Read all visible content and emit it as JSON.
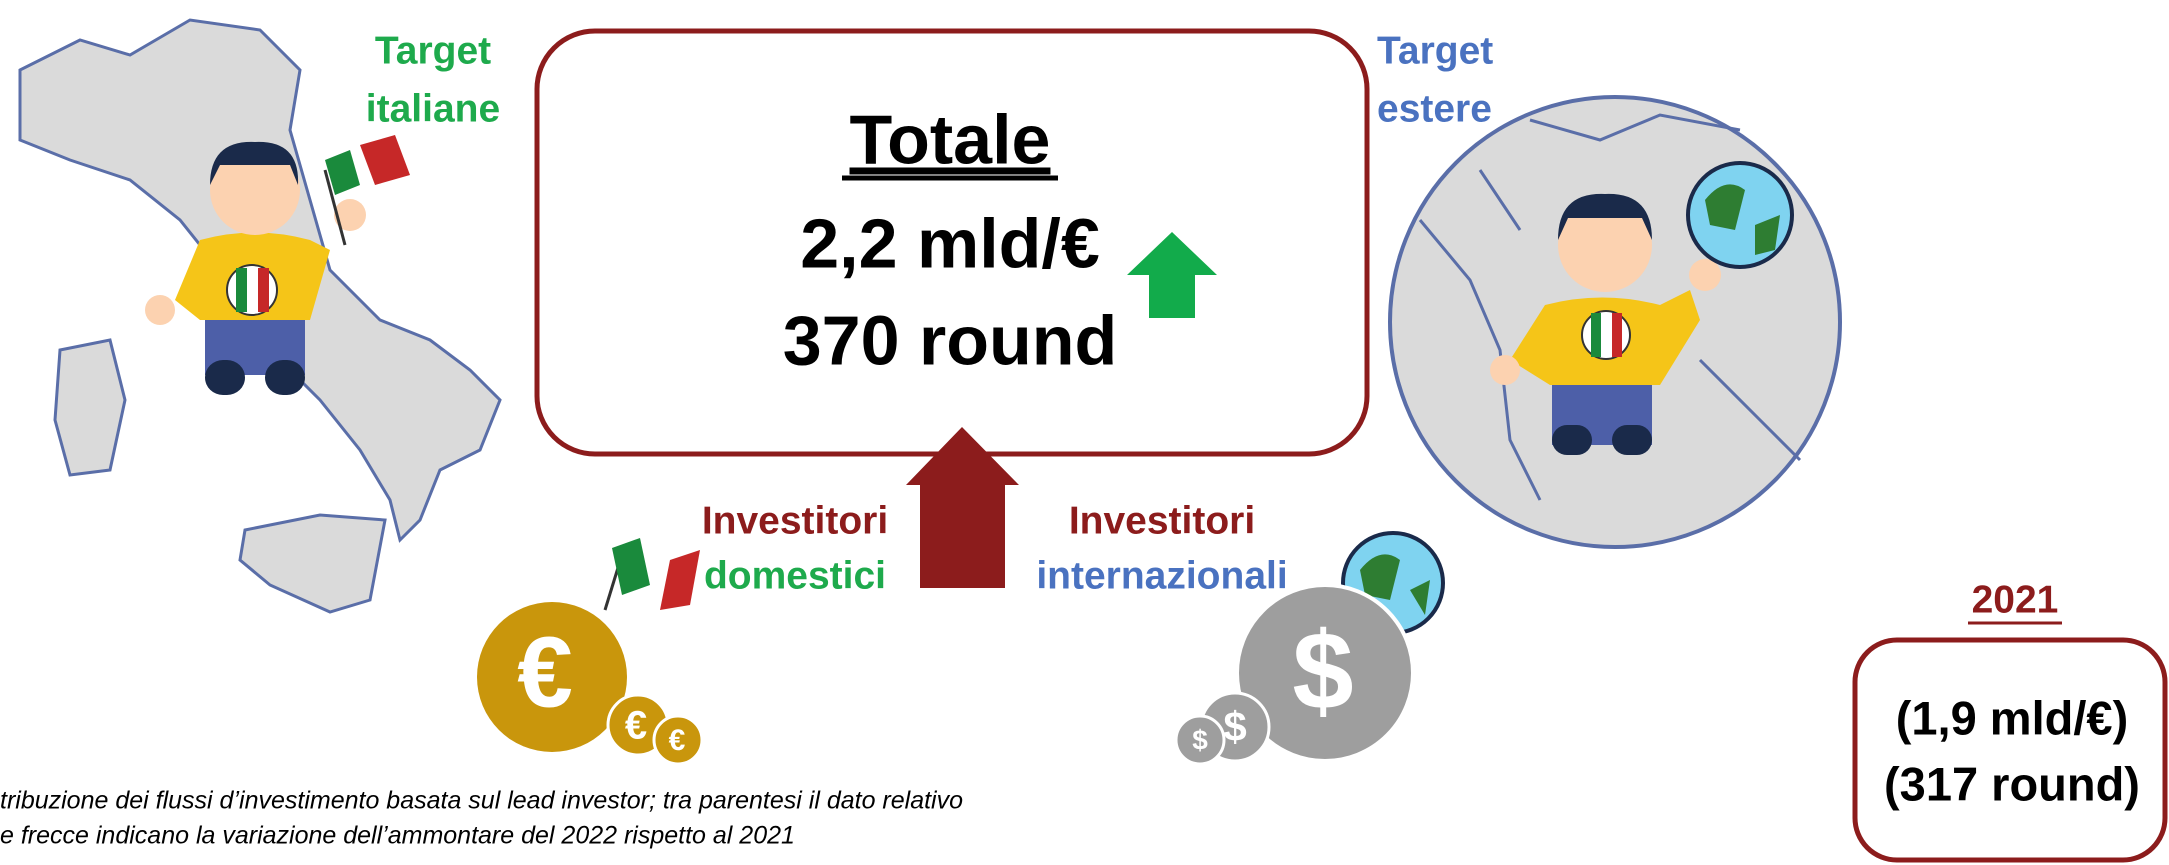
{
  "target_italiane": {
    "line1": "Target",
    "line2": "italiane"
  },
  "target_estere": {
    "line1": "Target",
    "line2": "estere"
  },
  "totale": {
    "title": "Totale",
    "amount": "2,2 mld/€",
    "rounds": "370 round"
  },
  "investitori_domestici": {
    "line1": "Investitori",
    "line2": "domestici"
  },
  "investitori_internazionali": {
    "line1": "Investitori",
    "line2": "internazionali"
  },
  "previous": {
    "year": "2021",
    "amount": "(1,9 mld/€)",
    "rounds": "(317 round)"
  },
  "footnote": {
    "line1": "tribuzione dei flussi d’investimento basata sul lead investor; tra parentesi il dato relativo",
    "line2": "e frecce indicano la variazione dell’ammontare del 2022 rispetto al 2021"
  }
}
